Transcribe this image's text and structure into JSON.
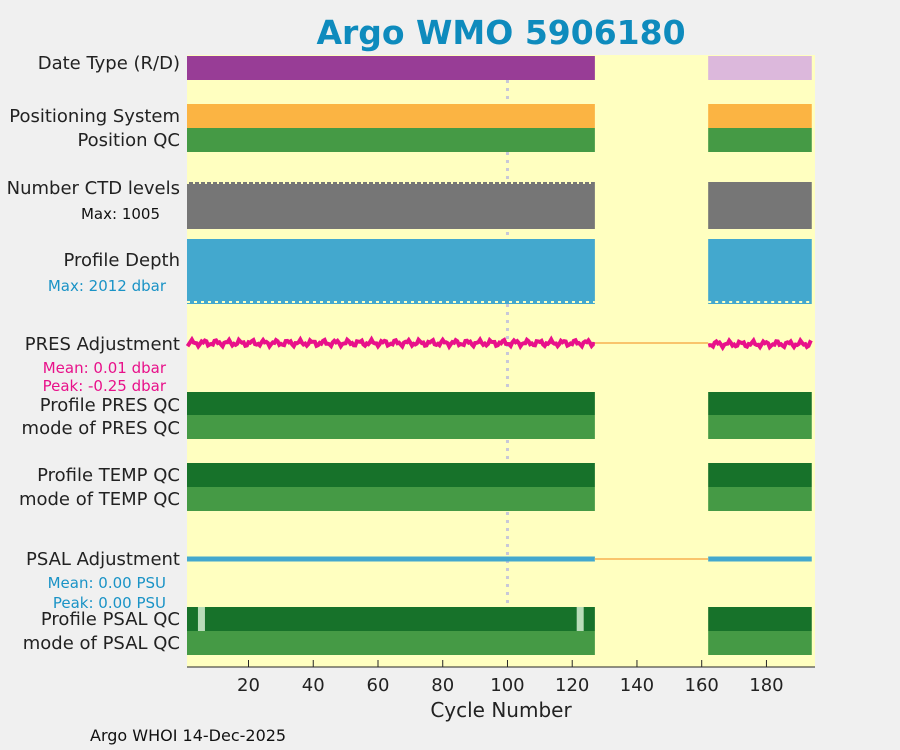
{
  "chart_data": {
    "type": "timeline",
    "title": "Argo WMO 5906180",
    "xlabel": "Cycle Number",
    "xlim": [
      1,
      195
    ],
    "xticks": [
      20,
      40,
      60,
      80,
      100,
      120,
      140,
      160,
      180
    ],
    "data_gap": [
      127,
      162
    ],
    "last_cycle": 194,
    "marker_cycle": 100,
    "rows": [
      {
        "key": "date_type",
        "label": "Date Type (R/D)",
        "segments": [
          {
            "from": 1,
            "to": 127,
            "color": "#983d96"
          },
          {
            "from": 162,
            "to": 194,
            "color": "#dcb8dc"
          }
        ]
      },
      {
        "key": "positioning_system",
        "label": "Positioning System",
        "segments": [
          {
            "from": 1,
            "to": 127,
            "color": "#fbb443"
          },
          {
            "from": 162,
            "to": 194,
            "color": "#fbb443"
          }
        ]
      },
      {
        "key": "position_qc",
        "label": "Position QC",
        "segments": [
          {
            "from": 1,
            "to": 127,
            "color": "#459a45"
          },
          {
            "from": 162,
            "to": 194,
            "color": "#459a45"
          }
        ]
      },
      {
        "key": "ctd_levels",
        "label": "Number CTD levels",
        "segments": [
          {
            "from": 1,
            "to": 127,
            "color": "#767676"
          },
          {
            "from": 162,
            "to": 194,
            "color": "#767676"
          }
        ]
      },
      {
        "key": "profile_depth",
        "label": "Profile Depth",
        "segments": [
          {
            "from": 1,
            "to": 127,
            "color": "#43a8ce"
          },
          {
            "from": 162,
            "to": 194,
            "color": "#43a8ce"
          }
        ]
      },
      {
        "key": "profile_pres_qc",
        "label": "Profile PRES QC",
        "segments": [
          {
            "from": 1,
            "to": 127,
            "color": "#17722a"
          },
          {
            "from": 162,
            "to": 194,
            "color": "#17722a"
          }
        ]
      },
      {
        "key": "mode_pres_qc",
        "label": "mode of PRES QC",
        "segments": [
          {
            "from": 1,
            "to": 127,
            "color": "#459a45"
          },
          {
            "from": 162,
            "to": 194,
            "color": "#459a45"
          }
        ]
      },
      {
        "key": "profile_temp_qc",
        "label": "Profile TEMP QC",
        "segments": [
          {
            "from": 1,
            "to": 127,
            "color": "#17722a"
          },
          {
            "from": 162,
            "to": 194,
            "color": "#17722a"
          }
        ]
      },
      {
        "key": "mode_temp_qc",
        "label": "mode of TEMP QC",
        "segments": [
          {
            "from": 1,
            "to": 127,
            "color": "#459a45"
          },
          {
            "from": 162,
            "to": 194,
            "color": "#459a45"
          }
        ]
      },
      {
        "key": "profile_psal_qc",
        "label": "Profile PSAL QC",
        "segments": [
          {
            "from": 1,
            "to": 127,
            "color": "#17722a"
          },
          {
            "from": 162,
            "to": 194,
            "color": "#17722a"
          }
        ],
        "highlights": [
          5,
          122
        ]
      },
      {
        "key": "mode_psal_qc",
        "label": "mode of PSAL QC",
        "segments": [
          {
            "from": 1,
            "to": 127,
            "color": "#459a45"
          },
          {
            "from": 162,
            "to": 194,
            "color": "#459a45"
          }
        ]
      }
    ],
    "pres_adjustment": {
      "label": "PRES Adjustment",
      "mean_text": "Mean: 0.01 dbar",
      "peak_text": "Peak: -0.25 dbar",
      "color": "#e8118a",
      "gap_color": "#f9c46c"
    },
    "psal_adjustment": {
      "label": "PSAL Adjustment",
      "mean_text": "Mean: 0.00 PSU",
      "peak_text": "Peak: 0.00 PSU",
      "color": "#43a8ce",
      "gap_color": "#f9c46c"
    },
    "ctd_max_text": "Max: 1005",
    "depth_max_text": "Max: 2012 dbar"
  },
  "colors": {
    "plot_background": "#ffffc0",
    "page_background": "#f0f0f0",
    "title": "#0e8bbd",
    "marker": "#c8c8d8"
  },
  "footer": "Argo WHOI 14-Dec-2025"
}
